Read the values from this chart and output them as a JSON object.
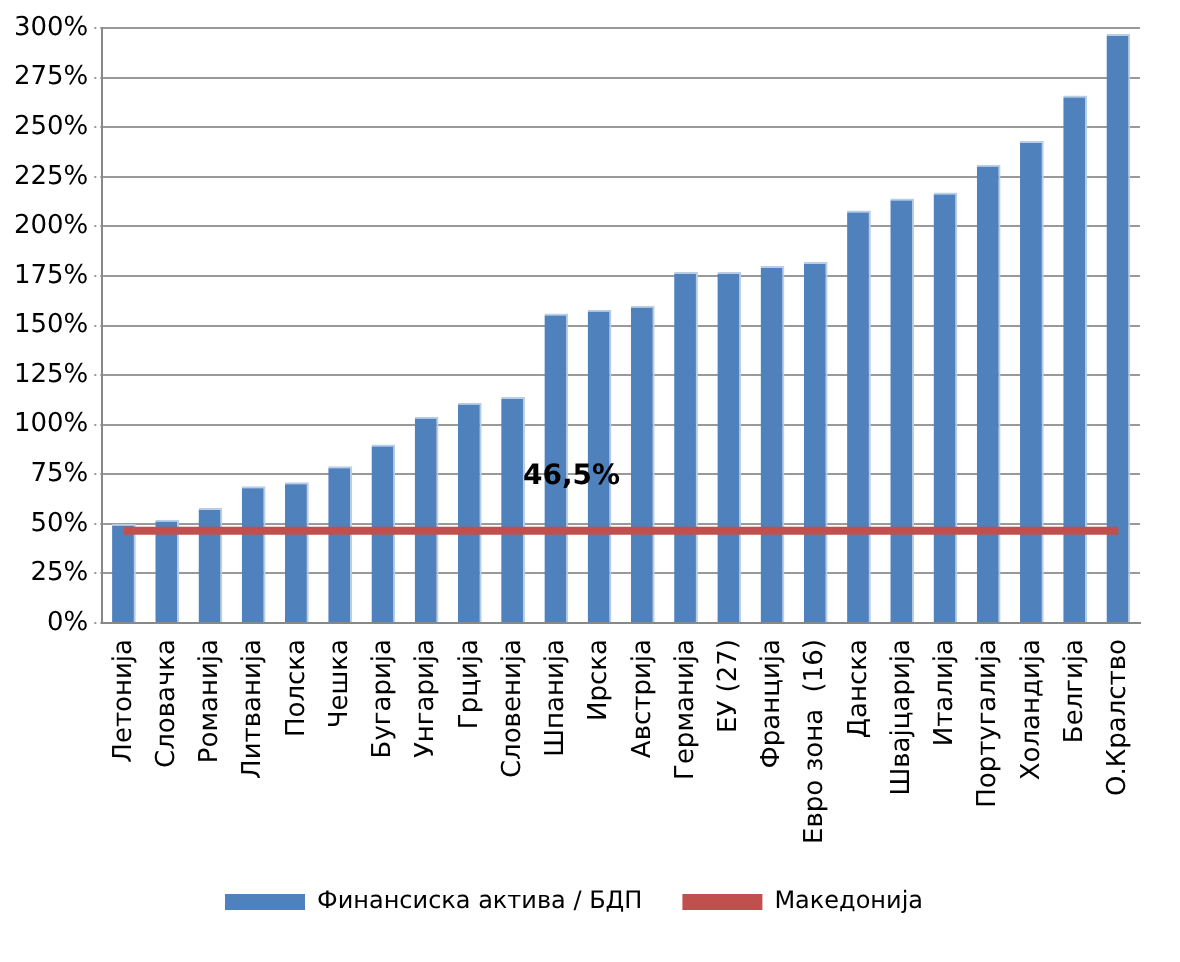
{
  "chart_data": {
    "type": "bar",
    "categories": [
      "Летонија",
      "Словачка",
      "Романија",
      "Литванија",
      "Полска",
      "Чешка",
      "Бугарија",
      "Унгарија",
      "Грција",
      "Словенија",
      "Шпанија",
      "Ирска",
      "Австрија",
      "Германија",
      "ЕУ (27)",
      "Франција",
      "Евро зона  (16)",
      "Данска",
      "Швајцарија",
      "Италија",
      "Португалија",
      "Холандија",
      "Белгија",
      "О.Кралство"
    ],
    "series": [
      {
        "name": "Финансиска актива / БДП",
        "color": "#4f81bd",
        "values": [
          50,
          52,
          58,
          69,
          71,
          79,
          90,
          104,
          111,
          114,
          156,
          158,
          160,
          177,
          177,
          180,
          182,
          208,
          214,
          217,
          231,
          243,
          266,
          297
        ]
      },
      {
        "name": "Македонија",
        "type": "line",
        "color": "#c0504d",
        "values": [
          46.5,
          46.5,
          46.5,
          46.5,
          46.5,
          46.5,
          46.5,
          46.5,
          46.5,
          46.5,
          46.5,
          46.5,
          46.5,
          46.5,
          46.5,
          46.5,
          46.5,
          46.5,
          46.5,
          46.5,
          46.5,
          46.5,
          46.5,
          46.5
        ]
      }
    ],
    "annotations": [
      {
        "text": "46,5%",
        "x": "Ирска",
        "y": 46.5
      }
    ],
    "ylim": [
      0,
      300
    ],
    "yticks": [
      {
        "value": 0,
        "label": "0%"
      },
      {
        "value": 25,
        "label": "25%"
      },
      {
        "value": 50,
        "label": "50%"
      },
      {
        "value": 75,
        "label": "75%"
      },
      {
        "value": 100,
        "label": "100%"
      },
      {
        "value": 125,
        "label": "125%"
      },
      {
        "value": 150,
        "label": "150%"
      },
      {
        "value": 175,
        "label": "175%"
      },
      {
        "value": 200,
        "label": "200%"
      },
      {
        "value": 225,
        "label": "225%"
      },
      {
        "value": 250,
        "label": "250%"
      },
      {
        "value": 275,
        "label": "275%"
      },
      {
        "value": 300,
        "label": "300%"
      }
    ],
    "grid": "y",
    "legend": "bottom",
    "marker": "none"
  }
}
